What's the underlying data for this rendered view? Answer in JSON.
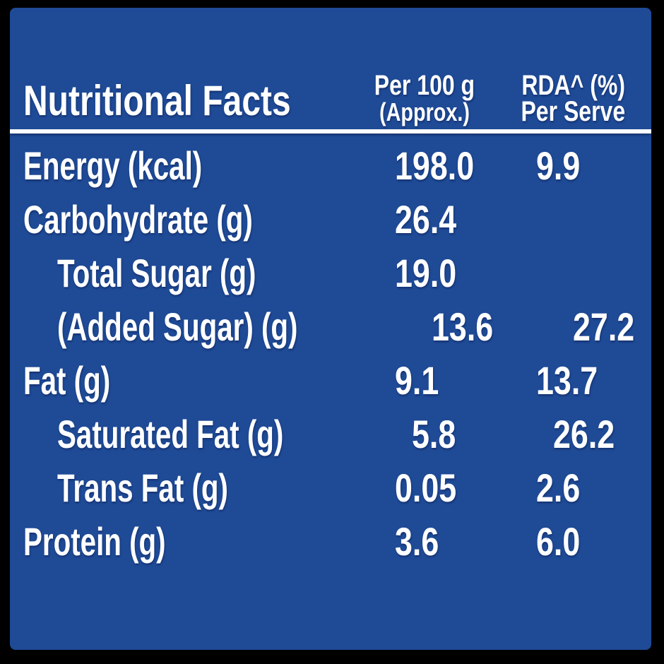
{
  "panel": {
    "background_color": "#1e4a96",
    "frame_color": "#000000",
    "text_color": "#ffffff",
    "rule_color": "#ffffff"
  },
  "header": {
    "title": "Nutritional Facts",
    "per_100g_col": {
      "line1": "Per 100 g",
      "line2": "(Approx.)"
    },
    "rda_col": {
      "line1": "RDA^ (%)",
      "line2": "Per Serve"
    }
  },
  "rows": [
    {
      "label": "Energy (kcal)",
      "per_100g": "198.0",
      "rda_per_serve": "9.9"
    },
    {
      "label": "Carbohydrate (g)",
      "per_100g": "26.4",
      "rda_per_serve": ""
    },
    {
      "label": "Total Sugar (g)",
      "per_100g": "19.0",
      "rda_per_serve": ""
    },
    {
      "label": "(Added Sugar) (g)",
      "per_100g": "13.6",
      "rda_per_serve": "27.2"
    },
    {
      "label": "Fat (g)",
      "per_100g": "9.1",
      "rda_per_serve": "13.7"
    },
    {
      "label": "Saturated Fat (g)",
      "per_100g": "5.8",
      "rda_per_serve": "26.2"
    },
    {
      "label": "Trans Fat (g)",
      "per_100g": "0.05",
      "rda_per_serve": "2.6"
    },
    {
      "label": "Protein (g)",
      "per_100g": "3.6",
      "rda_per_serve": "6.0"
    }
  ]
}
